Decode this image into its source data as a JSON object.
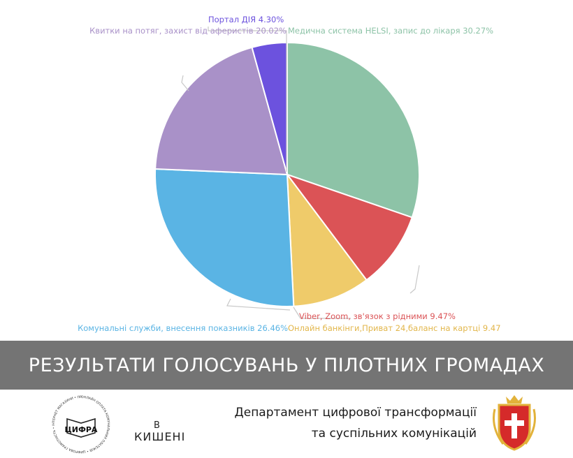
{
  "chart_data": {
    "type": "pie",
    "title": "",
    "slices": [
      {
        "label": "Медична система HELSI, запис до лікаря",
        "value": 30.27,
        "text": "Медична система HELSI, запис до лікаря 30.27%",
        "color": "#8dc3a7"
      },
      {
        "label": "Viber, Zoom, зв'язок з рідними",
        "value": 9.47,
        "text": "Viber, Zoom, зв'язок з рідними 9.47%",
        "color": "#db5356"
      },
      {
        "label": "Онлайн банкінги,Приват 24,баланс на картці",
        "value": 9.47,
        "text": "Онлайн банкінги,Приват 24,баланс на картці 9.47",
        "color": "#efcb6a"
      },
      {
        "label": "Комунальні служби, внесення показників",
        "value": 26.46,
        "text": "Комунальні служби, внесення показників 26.46%",
        "color": "#5ab4e4"
      },
      {
        "label": "Квитки на потяг, захист від аферистів",
        "value": 20.02,
        "text": "Квитки на потяг, захист від аферистів 20.02%",
        "color": "#a991c8"
      },
      {
        "label": "Портал ДІЯ",
        "value": 4.3,
        "text": "Портал ДІЯ 4.30%",
        "color": "#6c52de"
      }
    ]
  },
  "banner": {
    "title": "РЕЗУЛЬТАТИ ГОЛОСУВАНЬ У ПІЛОТНИХ ГРОМАДАХ"
  },
  "footer": {
    "kysheni_top": "В",
    "kysheni_bottom": "КИШЕНІ",
    "cyfra_name": "ЦИФРА",
    "cyfra_ring": "ОНЛАЙН ОПЛАТА КОМУНАЛЬНИХ ПЛАТЕЖІВ • ЦИФРОВА ГРАМОТНІСТЬ • ІНТЕРНЕТ МАГАЗИНИ • ПРОЄКТ АКТИВНИХ ГРОМАД • МЕДИЧНА СИСТЕМА HELSI • ЦИФРОВА ОСВІТА ДІЯ",
    "dept_line1": "Департамент цифрової трансформації",
    "dept_line2": "та суспільних комунікацій"
  }
}
